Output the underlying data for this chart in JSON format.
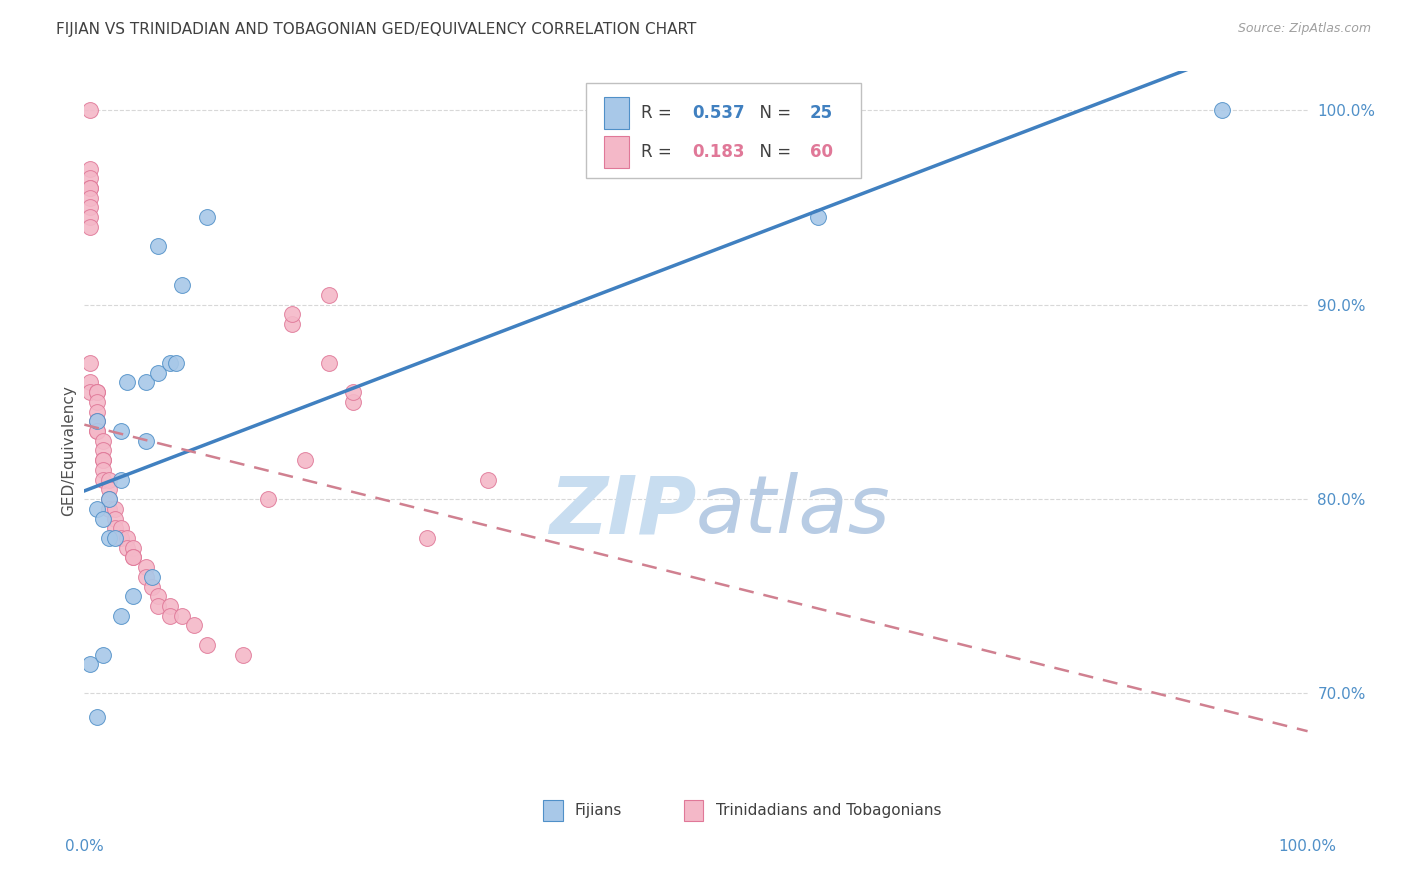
{
  "title": "FIJIAN VS TRINIDADIAN AND TOBAGONIAN GED/EQUIVALENCY CORRELATION CHART",
  "source": "Source: ZipAtlas.com",
  "ylabel": "GED/Equivalency",
  "legend_blue_r": "0.537",
  "legend_blue_n": "25",
  "legend_pink_r": "0.183",
  "legend_pink_n": "60",
  "legend_label_blue": "Fijians",
  "legend_label_pink": "Trinidadians and Tobagonians",
  "fijian_x": [
    93.0,
    0.5,
    1.0,
    6.0,
    10.0,
    1.0,
    3.0,
    3.5,
    5.0,
    5.0,
    6.0,
    7.0,
    2.0,
    1.0,
    1.5,
    2.0,
    2.5,
    3.0,
    7.5,
    4.0,
    5.5,
    1.5,
    8.0,
    3.0,
    60.0
  ],
  "fijian_y": [
    100.0,
    71.5,
    68.8,
    93.0,
    94.5,
    84.0,
    83.5,
    86.0,
    86.0,
    83.0,
    86.5,
    87.0,
    80.0,
    79.5,
    79.0,
    78.0,
    78.0,
    81.0,
    87.0,
    75.0,
    76.0,
    72.0,
    91.0,
    74.0,
    94.5
  ],
  "trinidadian_x": [
    0.5,
    0.5,
    0.5,
    0.5,
    0.5,
    0.5,
    0.5,
    0.5,
    0.5,
    0.5,
    0.5,
    0.5,
    1.0,
    1.0,
    1.0,
    1.0,
    1.0,
    1.0,
    1.0,
    1.5,
    1.5,
    1.5,
    1.5,
    1.5,
    1.5,
    2.0,
    2.0,
    2.0,
    2.0,
    2.5,
    2.5,
    2.5,
    3.0,
    3.0,
    3.5,
    3.5,
    4.0,
    4.0,
    4.0,
    5.0,
    5.0,
    5.5,
    6.0,
    6.0,
    7.0,
    7.0,
    8.0,
    9.0,
    10.0,
    13.0,
    15.0,
    17.0,
    17.0,
    18.0,
    20.0,
    20.0,
    22.0,
    22.0,
    28.0,
    33.0
  ],
  "trinidadian_y": [
    100.0,
    97.0,
    96.5,
    96.0,
    96.0,
    95.5,
    95.0,
    94.5,
    94.0,
    87.0,
    86.0,
    85.5,
    85.5,
    85.5,
    85.0,
    84.5,
    84.0,
    83.5,
    83.5,
    83.0,
    82.5,
    82.0,
    82.0,
    81.5,
    81.0,
    81.0,
    80.5,
    80.0,
    79.5,
    79.5,
    79.0,
    78.5,
    78.5,
    78.0,
    78.0,
    77.5,
    77.5,
    77.0,
    77.0,
    76.5,
    76.0,
    75.5,
    75.0,
    74.5,
    74.5,
    74.0,
    74.0,
    73.5,
    72.5,
    72.0,
    80.0,
    89.0,
    89.5,
    82.0,
    87.0,
    90.5,
    85.0,
    85.5,
    78.0,
    81.0
  ],
  "blue_fill": "#a8c8e8",
  "blue_edge": "#5090c8",
  "pink_fill": "#f4b8c8",
  "pink_edge": "#e07898",
  "blue_line": "#4080c0",
  "pink_dash_line": "#d08090",
  "bg_color": "#ffffff",
  "grid_color": "#d8d8d8",
  "watermark_zip_color": "#c8ddf0",
  "watermark_atlas_color": "#c8ddf0",
  "right_tick_color": "#5090c8",
  "title_color": "#404040",
  "source_color": "#a0a0a0"
}
